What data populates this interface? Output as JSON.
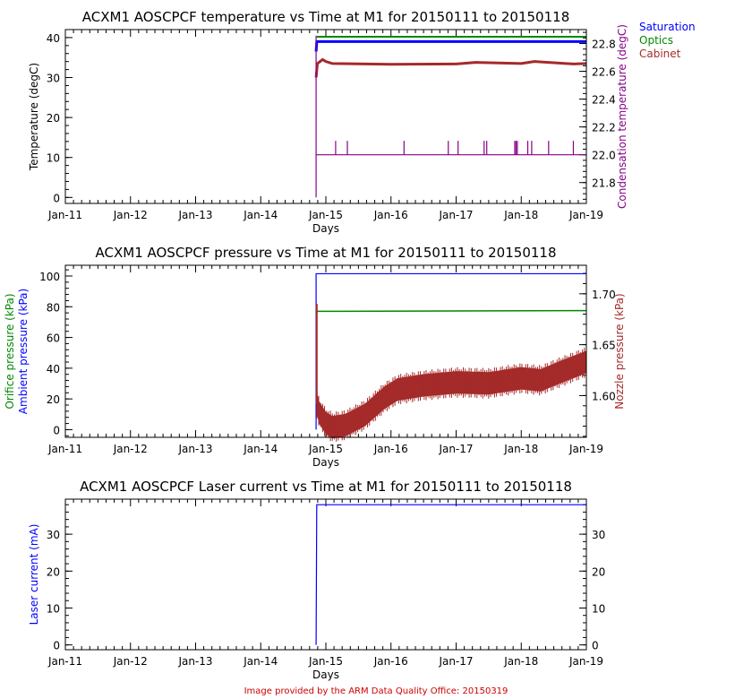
{
  "footer": "Image provided by the ARM Data Quality Office: 20150319",
  "colors": {
    "blue": "#0000ff",
    "green": "#008800",
    "red": "#a52a2a",
    "purple": "#880088",
    "footer": "#cc0000"
  },
  "chart_data": [
    {
      "type": "line",
      "title": "ACXM1 AOSCPCF temperature vs Time at M1 for 20150111 to 20150118",
      "xlabel": "Days",
      "ylabel": "Temperature (degC)",
      "ylabel_right": "Condensation temperature (degC)",
      "xticks": [
        "Jan-11",
        "Jan-12",
        "Jan-13",
        "Jan-14",
        "Jan-15",
        "Jan-16",
        "Jan-17",
        "Jan-18",
        "Jan-19"
      ],
      "xlim": [
        0,
        8
      ],
      "ylim": [
        -1.5,
        42
      ],
      "yticks": [
        0,
        10,
        20,
        30,
        40
      ],
      "ylim_right": [
        21.65,
        22.9
      ],
      "yticks_right": [
        "21.8",
        "22.0",
        "22.2",
        "22.4",
        "22.6",
        "22.8"
      ],
      "legend": [
        "Saturation",
        "Optics",
        "Cabinet"
      ],
      "legend_placement": "right-top",
      "series": [
        {
          "name": "Saturation",
          "axis": "left",
          "color": "blue",
          "x": [
            3.85,
            3.86,
            3.9,
            8
          ],
          "y": [
            36.5,
            39,
            39,
            39
          ],
          "width": 3
        },
        {
          "name": "Optics",
          "axis": "left",
          "color": "green",
          "x": [
            3.86,
            8
          ],
          "y": [
            40.2,
            40.2
          ],
          "width": 2
        },
        {
          "name": "Cabinet",
          "axis": "left",
          "color": "red",
          "x": [
            3.85,
            3.87,
            3.95,
            4.0,
            4.1,
            5,
            6,
            6.3,
            7,
            7.2,
            7.8,
            8
          ],
          "y": [
            30,
            33.5,
            34.5,
            34,
            33.5,
            33.3,
            33.4,
            33.8,
            33.5,
            34,
            33.4,
            33.5
          ],
          "width": 3
        },
        {
          "name": "Condensation",
          "axis": "right",
          "color": "purple",
          "x": [
            3.85,
            8
          ],
          "y": [
            22.0,
            22.0
          ],
          "width": 1.2,
          "start_from_left_value": [
            0,
            40.5
          ],
          "spikes_x": [
            4.15,
            4.33,
            5.2,
            5.88,
            6.03,
            6.43,
            6.47,
            6.9,
            6.92,
            6.94,
            7.1,
            7.16,
            7.42,
            7.8
          ],
          "spike_top": 22.1
        }
      ]
    },
    {
      "type": "line",
      "title": "ACXM1 AOSCPCF pressure vs Time at M1 for 20150111 to 20150118",
      "xlabel": "Days",
      "ylabel": "Orifice pressure (kPa)",
      "ylabel2": "Ambient pressure (kPa)",
      "ylabel_right": "Nozzle pressure (kPa)",
      "xticks": [
        "Jan-11",
        "Jan-12",
        "Jan-13",
        "Jan-14",
        "Jan-15",
        "Jan-16",
        "Jan-17",
        "Jan-18",
        "Jan-19"
      ],
      "xlim": [
        0,
        8
      ],
      "ylim": [
        -5,
        107
      ],
      "yticks": [
        0,
        20,
        40,
        60,
        80,
        100
      ],
      "ylim_right": [
        1.559,
        1.728
      ],
      "yticks_right": [
        "1.60",
        "1.65",
        "1.70"
      ],
      "series": [
        {
          "name": "Ambient pressure",
          "axis": "left",
          "color": "blue",
          "x": [
            3.85,
            3.85,
            8
          ],
          "y": [
            0,
            101.5,
            101.5
          ],
          "width": 1.2
        },
        {
          "name": "Orifice pressure",
          "axis": "left",
          "color": "green",
          "x": [
            3.86,
            8
          ],
          "y": [
            77,
            77.5
          ],
          "width": 1.5
        },
        {
          "name": "Nozzle pressure",
          "axis": "right",
          "color": "red",
          "band": 0.011,
          "x": [
            3.86,
            3.9,
            4.0,
            4.1,
            4.3,
            4.6,
            4.9,
            5.1,
            5.5,
            6.0,
            6.5,
            7.0,
            7.3,
            7.6,
            8
          ],
          "y": [
            1.592,
            1.583,
            1.573,
            1.569,
            1.571,
            1.581,
            1.598,
            1.606,
            1.61,
            1.613,
            1.612,
            1.617,
            1.615,
            1.623,
            1.633
          ]
        }
      ]
    },
    {
      "type": "line",
      "title": "ACXM1 AOSCPCF Laser current vs Time at M1 for 20150111 to 20150118",
      "xlabel": "Days",
      "ylabel": "Laser current (mA)",
      "xticks": [
        "Jan-11",
        "Jan-12",
        "Jan-13",
        "Jan-14",
        "Jan-15",
        "Jan-16",
        "Jan-17",
        "Jan-18",
        "Jan-19"
      ],
      "xlim": [
        0,
        8
      ],
      "ylim": [
        -1.3,
        39.5
      ],
      "yticks": [
        0,
        10,
        20,
        30
      ],
      "series": [
        {
          "name": "Laser current",
          "axis": "left",
          "color": "blue",
          "x": [
            3.85,
            3.86,
            8
          ],
          "y": [
            0,
            38,
            38
          ],
          "width": 1.2
        }
      ]
    }
  ]
}
